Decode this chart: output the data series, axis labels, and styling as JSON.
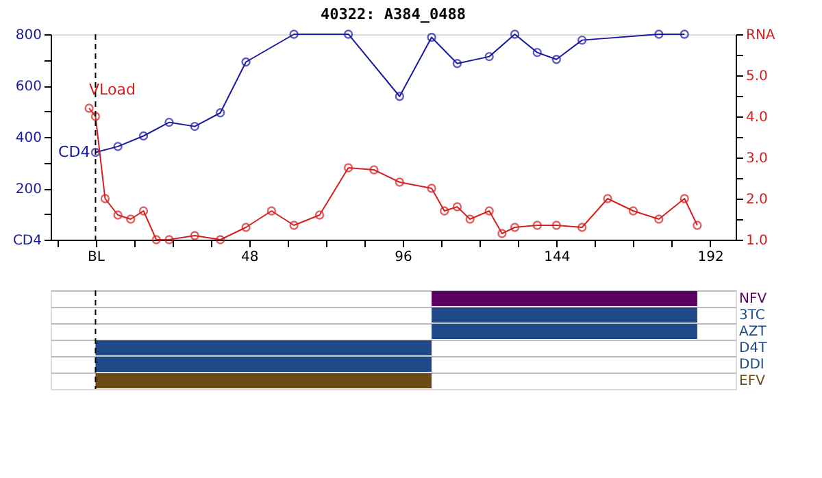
{
  "chart_data": [
    {
      "type": "line",
      "title": "40322: A384_0488",
      "marker": "circle",
      "grid": false,
      "legend": false,
      "xlim": [
        -14,
        200
      ],
      "xticks": [
        {
          "value": -12,
          "label": null
        },
        {
          "value": 0,
          "label": "BL"
        },
        {
          "value": 12,
          "label": null
        },
        {
          "value": 24,
          "label": null
        },
        {
          "value": 36,
          "label": null
        },
        48,
        {
          "value": 60,
          "label": null
        },
        {
          "value": 72,
          "label": null
        },
        {
          "value": 84,
          "label": null
        },
        96,
        {
          "value": 108,
          "label": null
        },
        {
          "value": 120,
          "label": null
        },
        {
          "value": 132,
          "label": null
        },
        144,
        {
          "value": 156,
          "label": null
        },
        {
          "value": 168,
          "label": null
        },
        {
          "value": 180,
          "label": null
        },
        192
      ],
      "ylim": [
        0,
        800
      ],
      "yticks": [
        {
          "value": 0,
          "label": "CD4"
        },
        {
          "value": 100,
          "label": null
        },
        200,
        {
          "value": 300,
          "label": null
        },
        400,
        {
          "value": 500,
          "label": null
        },
        600,
        {
          "value": 700,
          "label": null
        },
        800
      ],
      "y2lim": [
        1,
        6
      ],
      "y2ticks": [
        {
          "value": 1,
          "label": "1.0"
        },
        {
          "value": 1.5,
          "label": null
        },
        {
          "value": 2,
          "label": "2.0"
        },
        {
          "value": 2.5,
          "label": null
        },
        {
          "value": 3,
          "label": "3.0"
        },
        {
          "value": 3.5,
          "label": null
        },
        {
          "value": 4,
          "label": "4.0"
        },
        {
          "value": 4.5,
          "label": null
        },
        {
          "value": 5,
          "label": "5.0"
        },
        {
          "value": 5.5,
          "label": null
        },
        {
          "value": 6,
          "label": "RNA"
        }
      ],
      "series": [
        {
          "name": "CD4",
          "color": "#1a1aa0",
          "x": [
            0,
            7,
            15,
            23,
            31,
            39,
            47,
            62,
            79,
            95,
            105,
            113,
            123,
            131,
            138,
            144,
            152,
            176,
            184
          ],
          "values": [
            340,
            363,
            404,
            457,
            441,
            494,
            692,
            800,
            800,
            558,
            788,
            686,
            713,
            800,
            729,
            702,
            777,
            800,
            800
          ]
        },
        {
          "name": "VLoad",
          "color": "#d42020",
          "axis": "y2",
          "x": [
            -2,
            0,
            3,
            7,
            11,
            15,
            19,
            23,
            31,
            39,
            47,
            55,
            62,
            70,
            79,
            87,
            95,
            105,
            109,
            113,
            117,
            123,
            127,
            131,
            138,
            144,
            152,
            160,
            168,
            176,
            184,
            188
          ],
          "values": [
            4.2,
            4.0,
            2.0,
            1.6,
            1.5,
            1.7,
            1.0,
            1.0,
            1.1,
            1.0,
            1.3,
            1.7,
            1.35,
            1.6,
            2.75,
            2.7,
            2.4,
            2.25,
            1.7,
            1.8,
            1.5,
            1.7,
            1.15,
            1.3,
            1.35,
            1.35,
            1.3,
            2.0,
            1.7,
            1.5,
            2.0,
            1.35
          ]
        }
      ],
      "ref_lines": [
        {
          "axis": "x",
          "value": 0,
          "line_style": "dashed",
          "color": "#000000"
        }
      ]
    },
    {
      "type": "bar",
      "orientation": "horizontal",
      "grid": "y",
      "tick_labels": "y",
      "categories": [
        "NFV",
        "3TC",
        "AZT",
        "D4T",
        "DDI",
        "EFV"
      ],
      "base": [
        105,
        105,
        105,
        0,
        0,
        0
      ],
      "values": [
        83,
        83,
        83,
        105,
        105,
        105
      ],
      "colors": [
        "#5c0060",
        "#1f4a87",
        "#1f4a87",
        "#1f4a87",
        "#1f4a87",
        "#6b4a14"
      ],
      "xlim": [
        -14,
        200
      ],
      "ref_lines": [
        {
          "axis": "x",
          "value": 0,
          "line_style": "dashed",
          "color": "#000000"
        }
      ]
    }
  ]
}
